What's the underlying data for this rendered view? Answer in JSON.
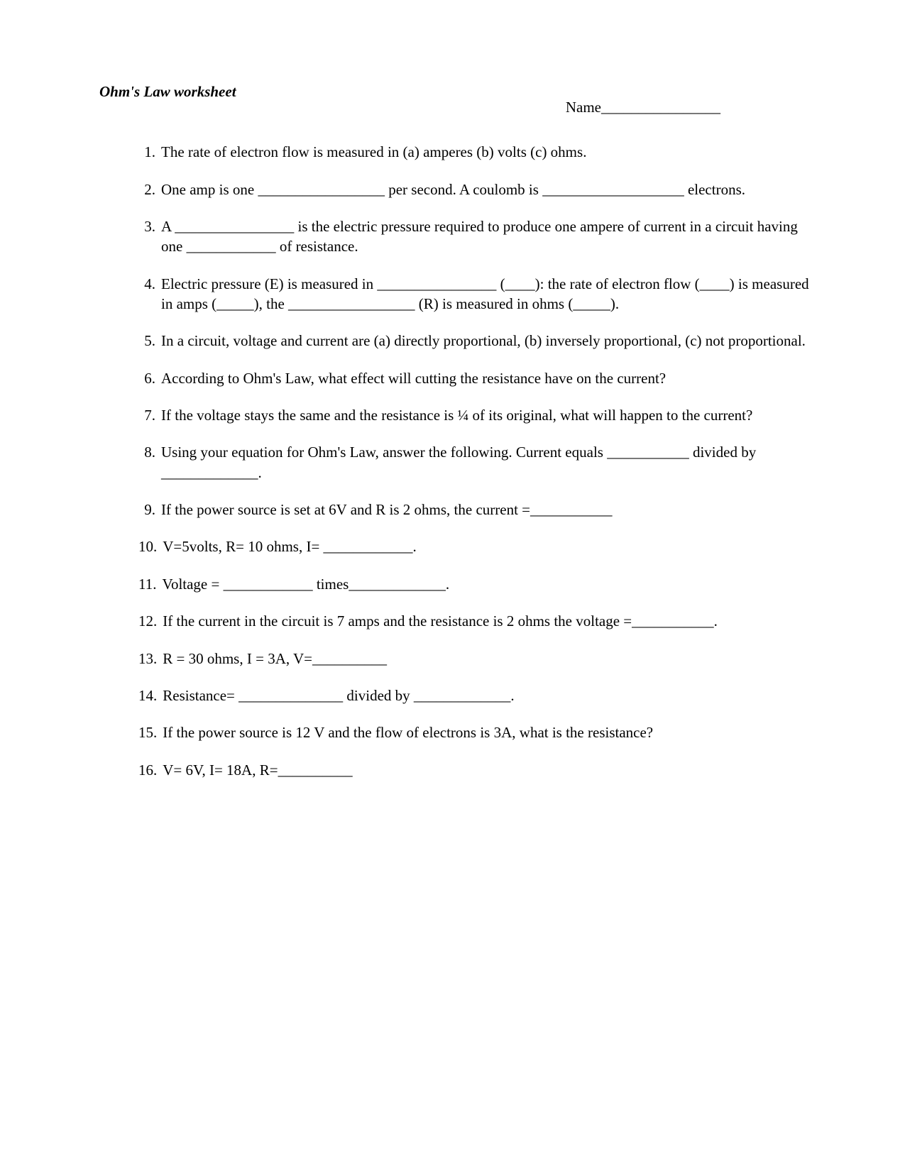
{
  "title": "Ohm's Law worksheet",
  "name_label": "Name________________",
  "questions": [
    {
      "num": "1.",
      "text": "The rate of electron flow is measured in (a) amperes (b) volts  (c) ohms."
    },
    {
      "num": "2.",
      "text": "One amp is one _________________ per second.  A coulomb is ___________________ electrons."
    },
    {
      "num": "3.",
      "text": "A ________________ is the electric pressure required to produce one ampere of current in a circuit having one ____________ of resistance."
    },
    {
      "num": "4.",
      "text": "Electric pressure (E) is measured in ________________ (____): the rate of electron flow (____) is measured in amps (_____), the _________________ (R) is measured in ohms (_____)."
    },
    {
      "num": "5.",
      "text": "In a circuit, voltage and current are (a) directly proportional,  (b) inversely proportional, (c) not proportional."
    },
    {
      "num": "6.",
      "text": "According to Ohm's Law, what effect will cutting the resistance have on the current?"
    },
    {
      "num": "7.",
      "text": "If the voltage stays the same and the resistance is ¼ of its original, what will happen to the current?"
    },
    {
      "num": "8.",
      "text": "Using your equation for Ohm's Law, answer the following. Current equals ___________ divided by _____________."
    },
    {
      "num": "9.",
      "text": "If the power source is set at 6V and R is 2 ohms, the current =___________"
    },
    {
      "num": "10.",
      "text": "V=5volts, R= 10 ohms, I= ____________."
    },
    {
      "num": "11.",
      "text": "Voltage = ____________ times_____________."
    },
    {
      "num": "12.",
      "text": "If the current in the circuit is 7 amps and the resistance is 2 ohms the voltage =___________."
    },
    {
      "num": "13.",
      "text": "R = 30 ohms, I = 3A, V=__________"
    },
    {
      "num": "14.",
      "text": "Resistance= ______________ divided by _____________."
    },
    {
      "num": "15.",
      "text": "If the power source is 12 V and the flow of electrons is 3A, what is the resistance?"
    },
    {
      "num": "16.",
      "text": "V= 6V, I= 18A, R=__________"
    }
  ]
}
